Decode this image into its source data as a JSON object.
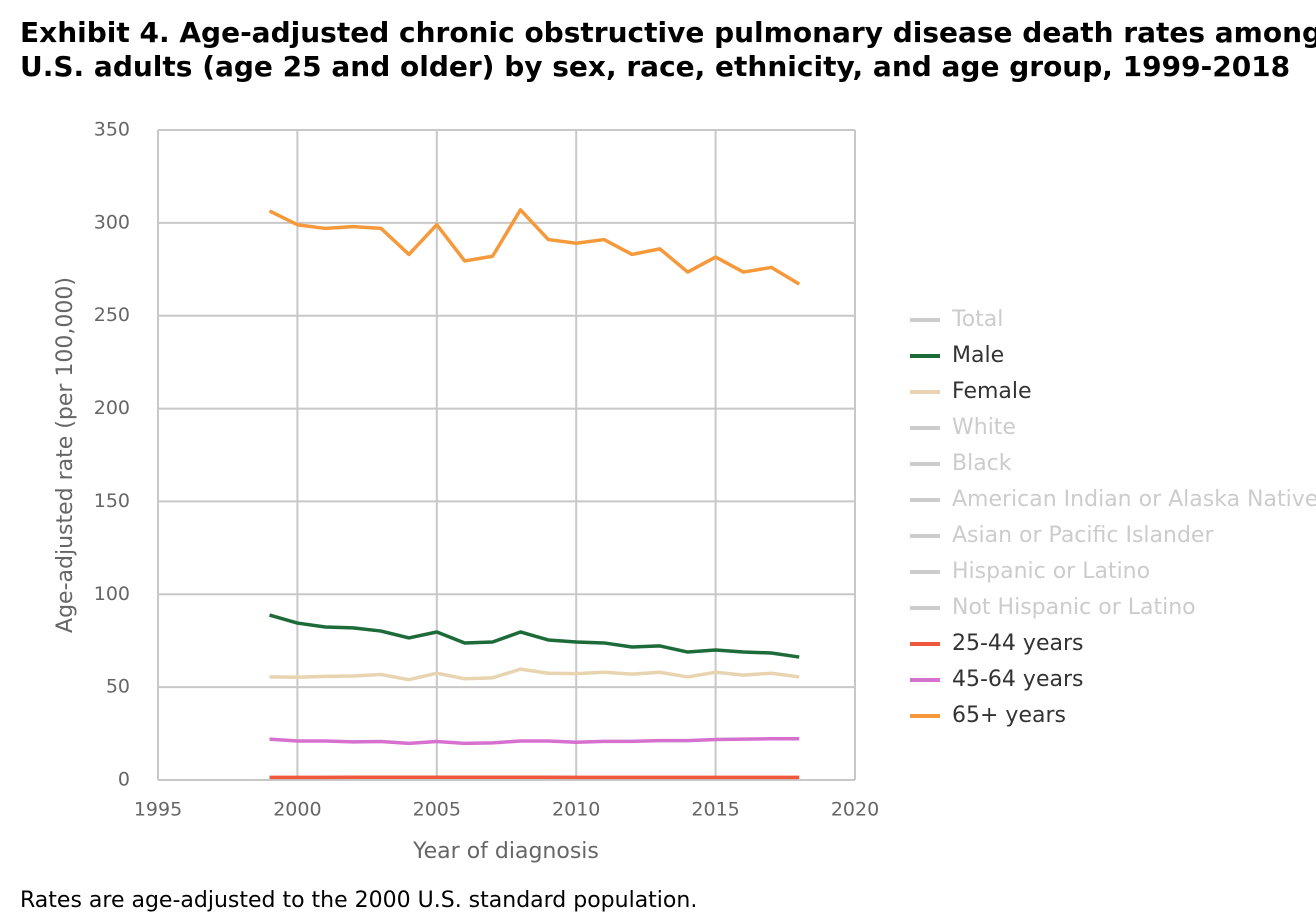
{
  "chart_data": {
    "type": "line",
    "title": "Exhibit 4. Age-adjusted chronic obstructive pulmonary disease death rates among U.S. adults (age 25 and older) by sex, race, ethnicity, and age group, 1999-2018",
    "x_label": "Year of diagnosis",
    "y_label": "Age-adjusted rate (per 100,000)",
    "footnote": "Rates are age-adjusted to the 2000 U.S. standard population.",
    "x": [
      1999,
      2000,
      2001,
      2002,
      2003,
      2004,
      2005,
      2006,
      2007,
      2008,
      2009,
      2010,
      2011,
      2012,
      2013,
      2014,
      2015,
      2016,
      2017,
      2018
    ],
    "xlim": [
      1995,
      2020
    ],
    "xticks": [
      1995,
      2000,
      2005,
      2010,
      2015,
      2020
    ],
    "ylim": [
      0,
      350
    ],
    "yticks": [
      0,
      50,
      100,
      150,
      200,
      250,
      300,
      350
    ],
    "grid": true,
    "legend": "right",
    "series": [
      {
        "name": "Total",
        "color": "#cccccc",
        "hidden": true
      },
      {
        "name": "Male",
        "color": "#1e6b3a",
        "values": [
          88.8,
          84.5,
          82.4,
          81.9,
          80.2,
          76.5,
          79.7,
          73.8,
          74.3,
          79.7,
          75.4,
          74.3,
          73.8,
          71.6,
          72.2,
          68.9,
          70,
          68.9,
          68.4,
          66.2
        ]
      },
      {
        "name": "Female",
        "color": "#e8d4b0",
        "values": [
          55.5,
          55.3,
          55.8,
          56,
          56.8,
          54,
          57.5,
          54.5,
          55,
          59.7,
          57.5,
          57.3,
          58,
          57,
          58,
          55.5,
          58,
          56.5,
          57.5,
          55.5
        ]
      },
      {
        "name": "White",
        "color": "#cccccc",
        "hidden": true
      },
      {
        "name": "Black",
        "color": "#cccccc",
        "hidden": true
      },
      {
        "name": "American Indian or Alaska Native",
        "color": "#cccccc",
        "hidden": true
      },
      {
        "name": "Asian or Pacific Islander",
        "color": "#cccccc",
        "hidden": true
      },
      {
        "name": "Hispanic or Latino",
        "color": "#cccccc",
        "hidden": true
      },
      {
        "name": "Not Hispanic or Latino",
        "color": "#cccccc",
        "hidden": true
      },
      {
        "name": "25-44 years",
        "color": "#f0583c",
        "values": [
          1.4,
          1.4,
          1.4,
          1.5,
          1.5,
          1.5,
          1.5,
          1.5,
          1.5,
          1.5,
          1.5,
          1.4,
          1.4,
          1.4,
          1.4,
          1.4,
          1.4,
          1.4,
          1.4,
          1.4
        ]
      },
      {
        "name": "45-64 years",
        "color": "#d671d0",
        "values": [
          22,
          21,
          21,
          20.5,
          20.7,
          19.7,
          20.7,
          19.7,
          20,
          21,
          21,
          20.3,
          20.8,
          20.8,
          21.2,
          21.2,
          21.8,
          22,
          22.2,
          22.2
        ]
      },
      {
        "name": "65+ years",
        "color": "#f5993a",
        "values": [
          306.4,
          299,
          297,
          298,
          297,
          283,
          299,
          279.5,
          282,
          307,
          291,
          289,
          291,
          283,
          286,
          273.5,
          281.6,
          273.5,
          276,
          267
        ]
      }
    ]
  }
}
